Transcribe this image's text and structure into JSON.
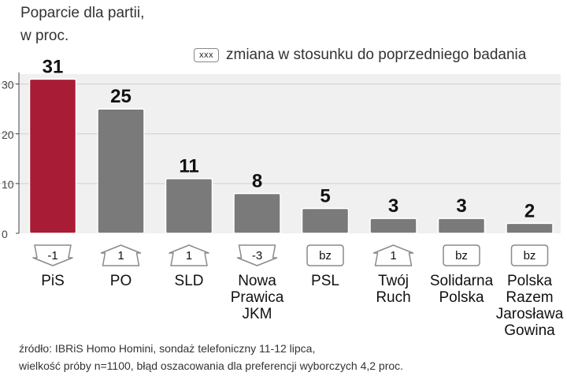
{
  "header": {
    "title_line1": "Poparcie dla partii,",
    "title_line2": "w proc."
  },
  "legend": {
    "box_label": "xxx",
    "text": "zmiana w stosunku do poprzedniego badania"
  },
  "source": {
    "line1": "źródło: IBRiS Homo Homini, sondaż telefoniczny 11-12 lipca,",
    "line2": "wielkość próby n=1100, błąd oszacowania dla preferencji wyborczych 4,2 proc."
  },
  "colors": {
    "highlight_bar": "#a81c35",
    "bar": "#7a7a7a",
    "plot_bg": "#f0f0f0"
  },
  "chart_data": {
    "type": "bar",
    "categories": [
      [
        "PiS"
      ],
      [
        "PO"
      ],
      [
        "SLD"
      ],
      [
        "Nowa",
        "Prawica",
        "JKM"
      ],
      [
        "PSL"
      ],
      [
        "Twój",
        "Ruch"
      ],
      [
        "Solidarna",
        "Polska"
      ],
      [
        "Polska",
        "Razem",
        "Jarosława",
        "Gowina"
      ]
    ],
    "values": [
      31,
      25,
      11,
      8,
      5,
      3,
      3,
      2
    ],
    "value_labels": [
      "31",
      "25",
      "11",
      "8",
      "5",
      "3",
      "3",
      "2"
    ],
    "changes": [
      {
        "label": "-1",
        "direction": "down"
      },
      {
        "label": "1",
        "direction": "up"
      },
      {
        "label": "1",
        "direction": "up"
      },
      {
        "label": "-3",
        "direction": "down"
      },
      {
        "label": "bz",
        "direction": "none"
      },
      {
        "label": "1",
        "direction": "up"
      },
      {
        "label": "bz",
        "direction": "none"
      },
      {
        "label": "bz",
        "direction": "none"
      }
    ],
    "highlight_index": 0,
    "yticks": [
      "0",
      "10",
      "20",
      "30"
    ],
    "ytick_values": [
      0,
      10,
      20,
      30
    ],
    "ylim": [
      0,
      32
    ],
    "grid": true
  }
}
